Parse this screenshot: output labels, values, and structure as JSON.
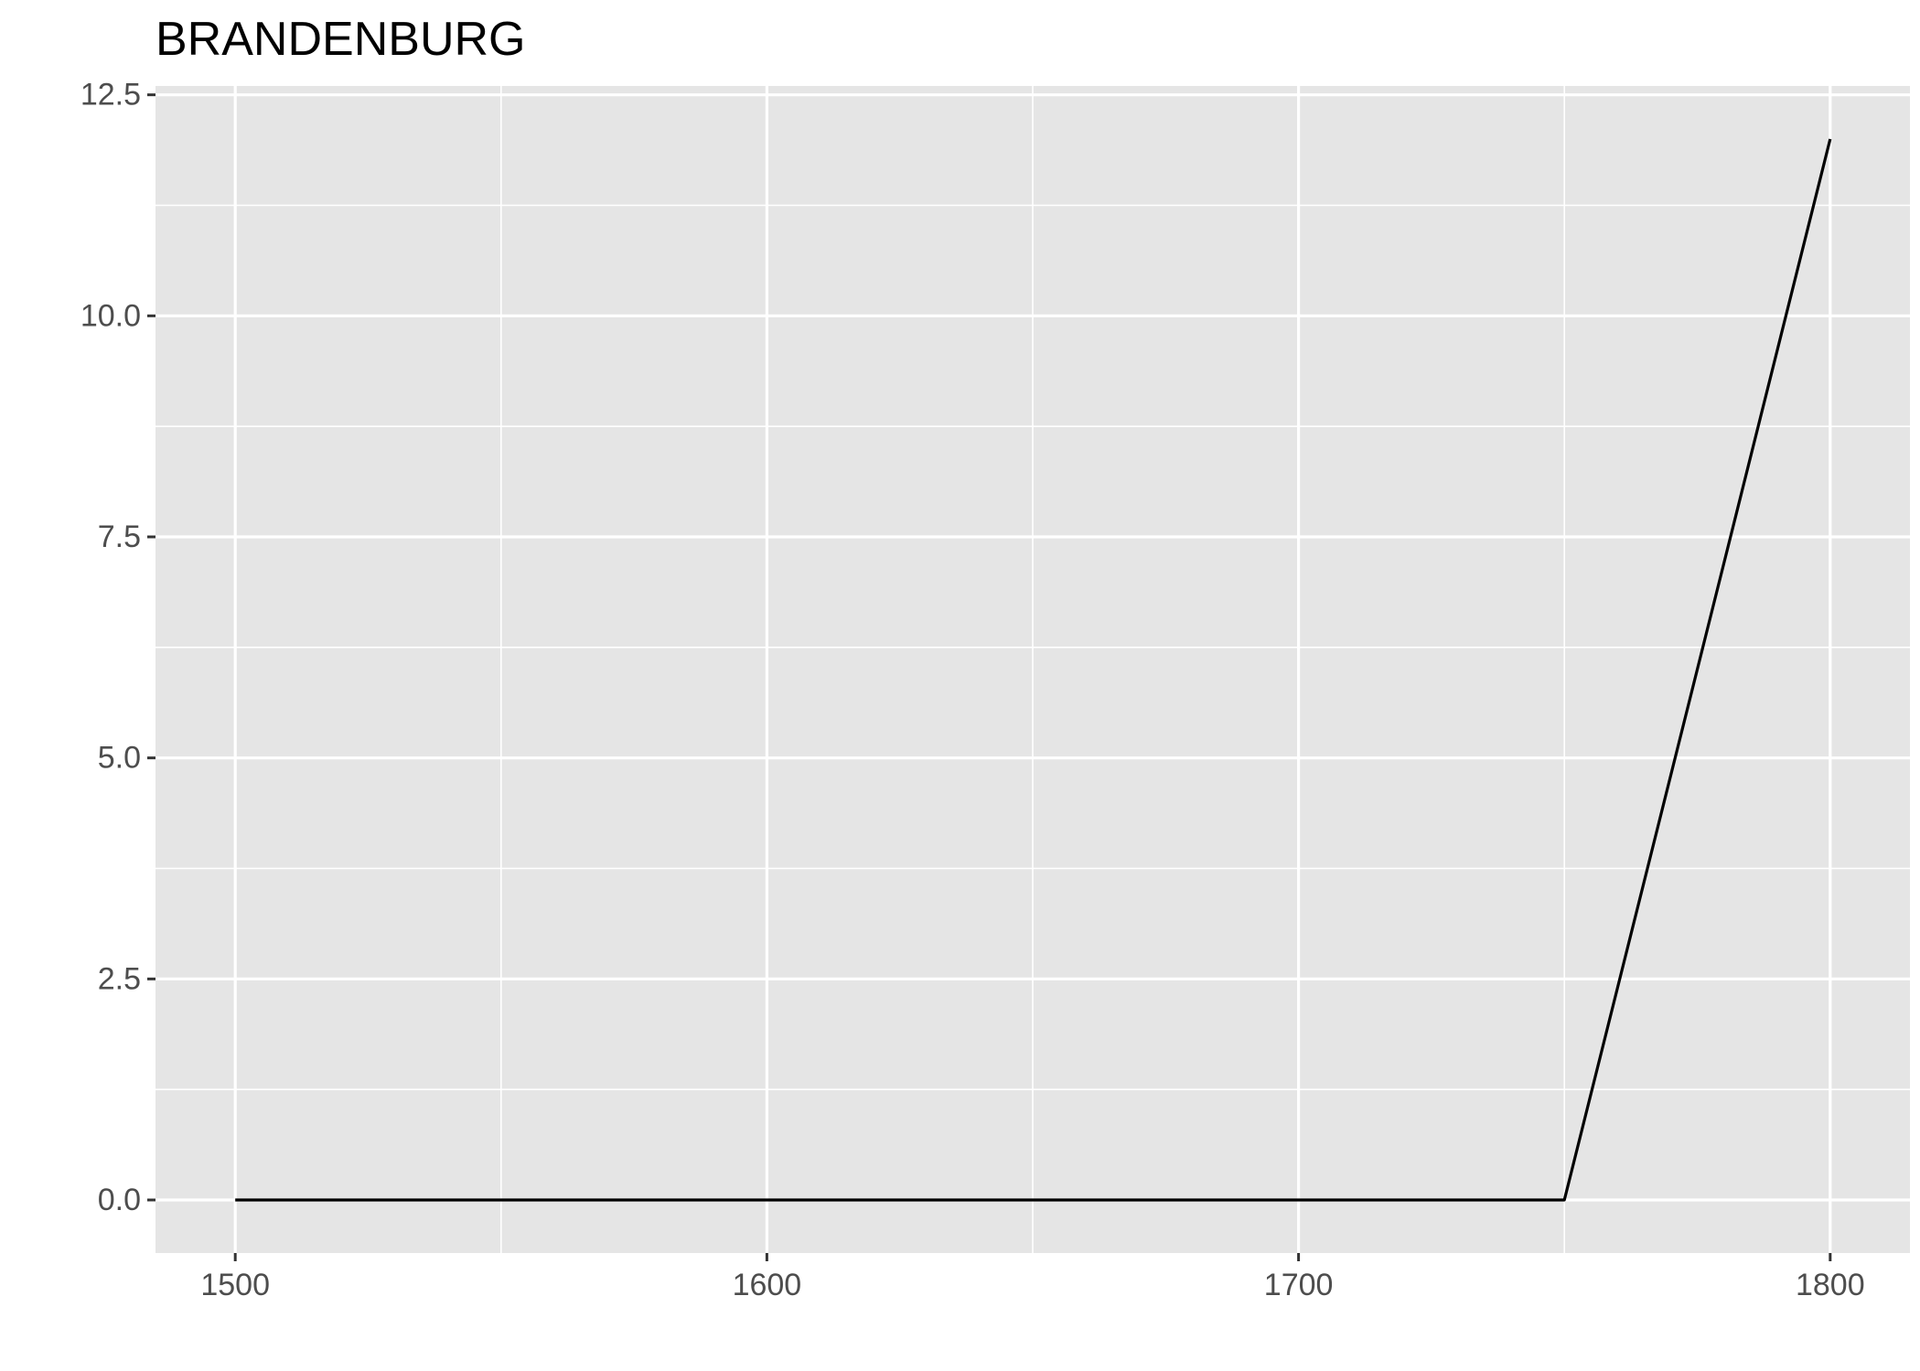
{
  "chart_data": {
    "type": "line",
    "title": "BRANDENBURG",
    "xlabel": "",
    "ylabel": "",
    "x": [
      1500,
      1550,
      1600,
      1650,
      1700,
      1750,
      1800
    ],
    "series": [
      {
        "values": [
          0,
          0,
          0,
          0,
          0,
          0,
          12
        ]
      }
    ],
    "xlim": [
      1485,
      1815
    ],
    "ylim": [
      -0.6,
      12.6
    ],
    "x_ticks": [
      1500,
      1600,
      1700,
      1800
    ],
    "x_tick_labels": [
      "1500",
      "1600",
      "1700",
      "1800"
    ],
    "x_minor_ticks": [
      1550,
      1650,
      1750
    ],
    "y_ticks": [
      0,
      2.5,
      5,
      7.5,
      10,
      12.5
    ],
    "y_tick_labels": [
      "0.0",
      "2.5",
      "5.0",
      "7.5",
      "10.0",
      "12.5"
    ],
    "y_minor_ticks": [
      1.25,
      3.75,
      6.25,
      8.75,
      11.25
    ],
    "grid": true,
    "legend": "none",
    "colors": {
      "panel_background": "#e5e5e5",
      "grid_line": "#ffffff",
      "series_line": "#000000",
      "tick_mark": "#333333",
      "tick_label": "#4d4d4d",
      "title": "#000000"
    }
  }
}
